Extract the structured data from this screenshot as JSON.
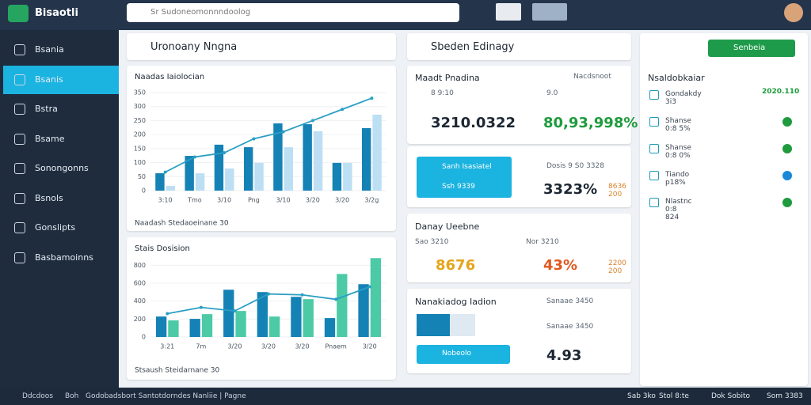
{
  "app": {
    "name": "Bisaotli",
    "search": "Sr Sudoneomonnndoolog"
  },
  "sidebar": [
    "Bsania",
    "Bsanis",
    "Bstra",
    "Bsame",
    "Sonongonns",
    "Bsnols",
    "Gonslipts",
    "Basbamoinns"
  ],
  "search_panel": "Uronoany Nngna",
  "charts": [
    {
      "type": "bar",
      "title": "Naadas Iaiolocian",
      "footer": "Naadash Stedaoeinane 30",
      "categories": [
        "3:10",
        "Tmo",
        "3/10",
        "Png",
        "3/10",
        "3/20",
        "3/20",
        "3/2g"
      ],
      "ylim": [
        0,
        350
      ],
      "yticks": [
        0,
        50,
        100,
        150,
        200,
        250,
        300,
        350
      ],
      "series": [
        {
          "color": "#1582b5",
          "values": [
            62,
            124,
            164,
            155,
            240,
            237,
            99,
            223
          ]
        },
        {
          "color": "#bcdff4",
          "values": [
            17,
            62,
            79,
            99,
            155,
            212,
            99,
            271
          ]
        }
      ],
      "line": {
        "color": "#2a9fc4",
        "values": [
          66,
          120,
          135,
          185,
          210,
          250,
          290,
          330
        ]
      }
    },
    {
      "type": "bar",
      "title": "Stais Dosision",
      "footer": "Stsaush Steidarnane 30",
      "categories": [
        "3:21",
        "7m",
        "3/20",
        "3/20",
        "3/20",
        "Pnaem",
        "3/20"
      ],
      "ylim": [
        0,
        900
      ],
      "yticks": [
        0,
        200,
        400,
        600,
        800
      ],
      "series": [
        {
          "color": "#1582b5",
          "values": [
            228,
            202,
            527,
            501,
            448,
            211,
            589
          ]
        },
        {
          "color": "#4ccaa6",
          "values": [
            185,
            255,
            290,
            228,
            422,
            703,
            880
          ]
        }
      ],
      "line": {
        "color": "#2a9fc4",
        "values": [
          260,
          330,
          290,
          480,
          470,
          420,
          560
        ]
      }
    }
  ],
  "middle": {
    "header": "Sbeden Edinagy",
    "card1": {
      "title": "Maadt Pnadina",
      "link": "Nacdsnoot",
      "small_left": "8 9:10",
      "small_right": "9.0",
      "big_left": "3210.0322",
      "big_right": "80,93,998%"
    },
    "card2": {
      "button_top": "Sanh Isasiatel",
      "button_sub": "Ssh 9339",
      "small": "Dosis 9 S0 3328",
      "big": "3323%",
      "note": "8636 200"
    },
    "card3": {
      "title": "Danay Ueebne",
      "small_left": "Sao 3210",
      "small_right": "Nor 3210",
      "big_left": "8676",
      "big_right": "43%",
      "note": "2200 200"
    },
    "card4": {
      "title": "Nanakiadog Iadion",
      "small1": "Sanaae 3450",
      "small2": "Sanaae 3450",
      "big": "4.93",
      "button": "Nobeolo"
    }
  },
  "right": {
    "button": "Senbeia",
    "header": "Nsaldobkaiar",
    "items": [
      "Gondakdy 3i3",
      "Shanse 0:8 5%",
      "Shanse 0:8 0%",
      "Tiando p18%",
      "Nlastnc 0:8 824"
    ],
    "first_value": "2020.110"
  },
  "status": {
    "left": [
      "Ddcdoos",
      "Boh",
      "Godobadsbort Santotdorndes Nanliie | Pagne"
    ],
    "right": [
      "Sab 3ko",
      "Stol 8:te",
      "Dok Sobito",
      "Som 3383"
    ]
  }
}
